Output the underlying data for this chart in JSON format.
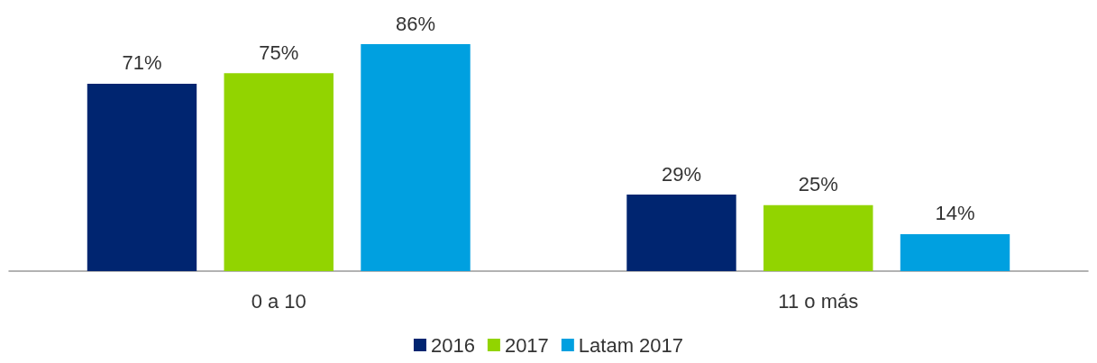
{
  "chart_data": {
    "type": "bar",
    "categories": [
      "0 a 10",
      "11 o más"
    ],
    "series": [
      {
        "name": "2016",
        "color": "#002570",
        "values": [
          71,
          29
        ],
        "value_labels": [
          "71%",
          "29%"
        ]
      },
      {
        "name": "2017",
        "color": "#92d400",
        "values": [
          75,
          25
        ],
        "value_labels": [
          "75%",
          "25%"
        ]
      },
      {
        "name": "Latam 2017",
        "color": "#00a0e0",
        "values": [
          86,
          14
        ],
        "value_labels": [
          "86%",
          "14%"
        ]
      }
    ],
    "legend": "bottom"
  }
}
